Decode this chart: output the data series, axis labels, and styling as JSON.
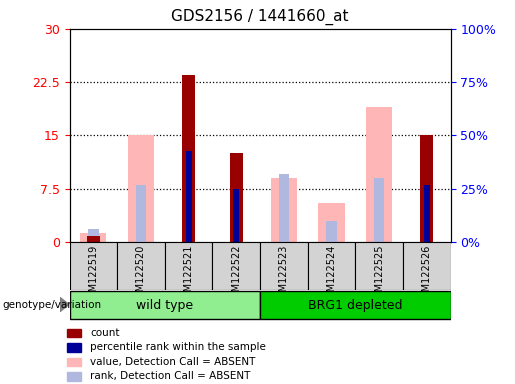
{
  "title": "GDS2156 / 1441660_at",
  "samples": [
    "GSM122519",
    "GSM122520",
    "GSM122521",
    "GSM122522",
    "GSM122523",
    "GSM122524",
    "GSM122525",
    "GSM122526"
  ],
  "count_values": [
    0.8,
    0.0,
    23.5,
    12.5,
    0.0,
    0.0,
    0.0,
    15.0
  ],
  "rank_values": [
    0.0,
    0.0,
    12.8,
    7.5,
    0.0,
    0.0,
    0.0,
    8.0
  ],
  "absent_value_values": [
    1.2,
    15.0,
    0.0,
    0.0,
    9.0,
    5.5,
    19.0,
    0.0
  ],
  "absent_rank_values": [
    1.8,
    8.0,
    0.0,
    0.0,
    9.5,
    3.0,
    9.0,
    0.0
  ],
  "ylim_left": [
    0,
    30
  ],
  "ylim_right": [
    0,
    100
  ],
  "yticks_left": [
    0,
    7.5,
    15,
    22.5,
    30
  ],
  "yticks_right": [
    0,
    25,
    50,
    75,
    100
  ],
  "ytick_labels_left": [
    "0",
    "7.5",
    "15",
    "22.5",
    "30"
  ],
  "ytick_labels_right": [
    "0%",
    "25%",
    "50%",
    "75%",
    "100%"
  ],
  "count_color": "#990000",
  "rank_color": "#000099",
  "absent_value_color": "#FFB6B6",
  "absent_rank_color": "#B0B8E0",
  "legend_items": [
    "count",
    "percentile rank within the sample",
    "value, Detection Call = ABSENT",
    "rank, Detection Call = ABSENT"
  ],
  "legend_colors": [
    "#990000",
    "#000099",
    "#FFB6B6",
    "#B0B8E0"
  ],
  "wt_color": "#90EE90",
  "brg_color": "#00CC00"
}
